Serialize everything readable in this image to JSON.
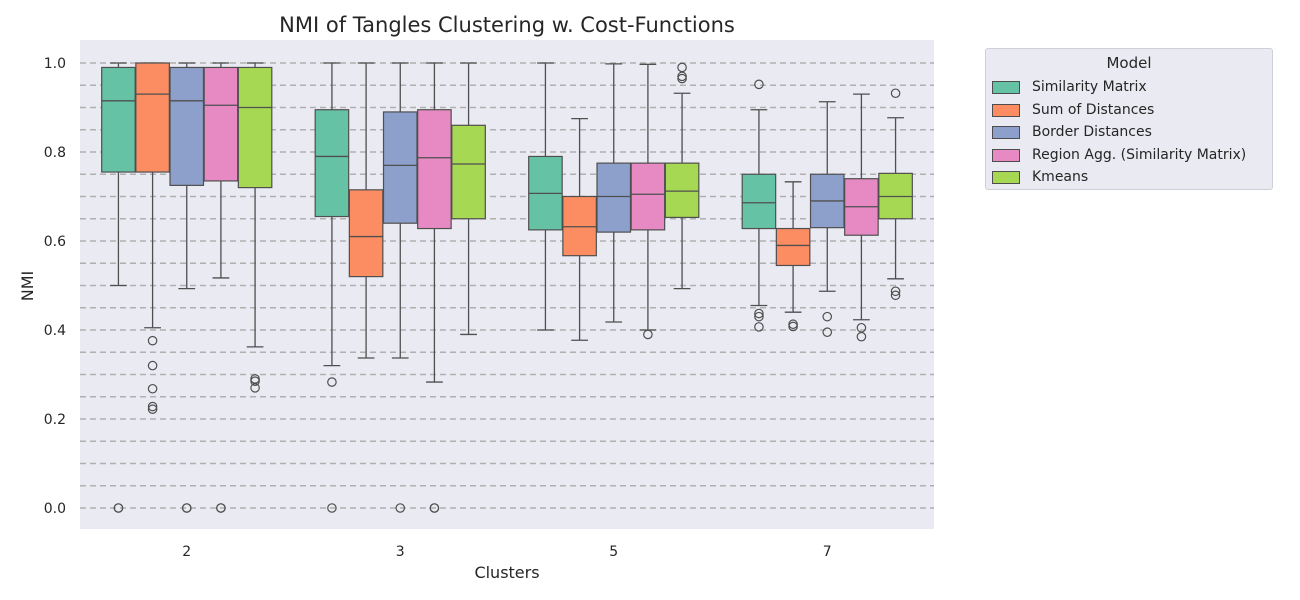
{
  "chart_data": {
    "type": "box",
    "title": "NMI of Tangles Clustering w. Cost-Functions",
    "xlabel": "Clusters",
    "ylabel": "NMI",
    "ylim": [
      -0.05,
      1.05
    ],
    "yticks": [
      "0.0",
      "0.2",
      "0.4",
      "0.6",
      "0.8",
      "1.0"
    ],
    "dashed_gridlines_every": 0.05,
    "categories": [
      "2",
      "3",
      "5",
      "7"
    ],
    "legend": {
      "title": "Model",
      "placement": "outside-right-top"
    },
    "series": [
      {
        "name": "Similarity Matrix",
        "color": "#66c2a5",
        "boxes": [
          {
            "whislo": 0.5,
            "q1": 0.755,
            "med": 0.915,
            "q3": 0.99,
            "whishi": 1.0,
            "fliers": [
              0.0,
              0.0
            ]
          },
          {
            "whislo": 0.32,
            "q1": 0.655,
            "med": 0.79,
            "q3": 0.895,
            "whishi": 1.0,
            "fliers": [
              0.283,
              0.0
            ]
          },
          {
            "whislo": 0.4,
            "q1": 0.625,
            "med": 0.707,
            "q3": 0.79,
            "whishi": 1.0,
            "fliers": []
          },
          {
            "whislo": 0.455,
            "q1": 0.628,
            "med": 0.686,
            "q3": 0.75,
            "whishi": 0.895,
            "fliers": [
              0.952,
              0.437,
              0.43,
              0.407
            ]
          }
        ]
      },
      {
        "name": "Sum of Distances",
        "color": "#fc8d62",
        "boxes": [
          {
            "whislo": 0.405,
            "q1": 0.755,
            "med": 0.93,
            "q3": 1.0,
            "whishi": 1.0,
            "fliers": [
              0.376,
              0.32,
              0.268,
              0.228,
              0.222
            ]
          },
          {
            "whislo": 0.337,
            "q1": 0.52,
            "med": 0.61,
            "q3": 0.715,
            "whishi": 1.0,
            "fliers": []
          },
          {
            "whislo": 0.377,
            "q1": 0.567,
            "med": 0.632,
            "q3": 0.7,
            "whishi": 0.875,
            "fliers": []
          },
          {
            "whislo": 0.44,
            "q1": 0.545,
            "med": 0.59,
            "q3": 0.628,
            "whishi": 0.733,
            "fliers": [
              0.413,
              0.408
            ]
          }
        ]
      },
      {
        "name": "Border Distances",
        "color": "#8da0cb",
        "boxes": [
          {
            "whislo": 0.493,
            "q1": 0.725,
            "med": 0.915,
            "q3": 0.99,
            "whishi": 1.0,
            "fliers": [
              0.0,
              0.0
            ]
          },
          {
            "whislo": 0.337,
            "q1": 0.64,
            "med": 0.77,
            "q3": 0.89,
            "whishi": 1.0,
            "fliers": [
              0.0
            ]
          },
          {
            "whislo": 0.418,
            "q1": 0.62,
            "med": 0.7,
            "q3": 0.775,
            "whishi": 0.998,
            "fliers": []
          },
          {
            "whislo": 0.487,
            "q1": 0.63,
            "med": 0.69,
            "q3": 0.75,
            "whishi": 0.913,
            "fliers": [
              0.43,
              0.395
            ]
          }
        ]
      },
      {
        "name": "Region Agg. (Similarity Matrix)",
        "color": "#e78ac3",
        "boxes": [
          {
            "whislo": 0.517,
            "q1": 0.735,
            "med": 0.905,
            "q3": 0.99,
            "whishi": 1.0,
            "fliers": [
              0.0,
              0.0
            ]
          },
          {
            "whislo": 0.283,
            "q1": 0.628,
            "med": 0.787,
            "q3": 0.895,
            "whishi": 1.0,
            "fliers": [
              0.0,
              0.0
            ]
          },
          {
            "whislo": 0.4,
            "q1": 0.625,
            "med": 0.705,
            "q3": 0.775,
            "whishi": 0.997,
            "fliers": [
              0.39
            ]
          },
          {
            "whislo": 0.423,
            "q1": 0.613,
            "med": 0.677,
            "q3": 0.74,
            "whishi": 0.93,
            "fliers": [
              0.405,
              0.385
            ]
          }
        ]
      },
      {
        "name": "Kmeans",
        "color": "#a6d854",
        "boxes": [
          {
            "whislo": 0.362,
            "q1": 0.72,
            "med": 0.9,
            "q3": 0.99,
            "whishi": 1.0,
            "fliers": [
              0.29,
              0.285,
              0.27
            ]
          },
          {
            "whislo": 0.39,
            "q1": 0.65,
            "med": 0.773,
            "q3": 0.86,
            "whishi": 1.0,
            "fliers": []
          },
          {
            "whislo": 0.493,
            "q1": 0.653,
            "med": 0.712,
            "q3": 0.775,
            "whishi": 0.932,
            "fliers": [
              0.99,
              0.97,
              0.965
            ]
          },
          {
            "whislo": 0.515,
            "q1": 0.65,
            "med": 0.7,
            "q3": 0.752,
            "whishi": 0.877,
            "fliers": [
              0.932,
              0.487,
              0.478
            ]
          }
        ]
      }
    ]
  }
}
